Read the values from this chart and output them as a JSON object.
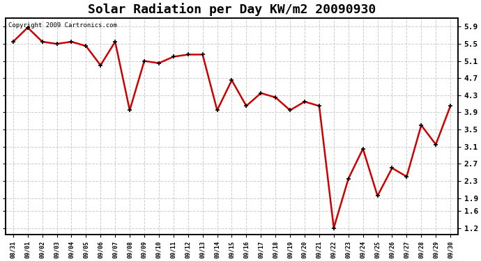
{
  "title": "Solar Radiation per Day KW/m2 20090930",
  "copyright_text": "Copyright 2009 Cartronics.com",
  "x_labels": [
    "08/31",
    "09/01",
    "09/02",
    "09/03",
    "09/04",
    "09/05",
    "09/06",
    "09/07",
    "09/08",
    "09/09",
    "09/10",
    "09/11",
    "09/12",
    "09/13",
    "09/14",
    "09/15",
    "09/16",
    "09/17",
    "09/18",
    "09/19",
    "09/20",
    "09/21",
    "09/22",
    "09/23",
    "09/24",
    "09/25",
    "09/26",
    "09/27",
    "09/28",
    "09/29",
    "09/30"
  ],
  "y_values": [
    5.55,
    5.88,
    5.55,
    5.5,
    5.55,
    5.45,
    5.0,
    5.55,
    3.95,
    5.1,
    5.05,
    5.2,
    5.25,
    5.25,
    3.95,
    4.65,
    4.05,
    4.35,
    4.25,
    3.95,
    4.15,
    4.05,
    1.2,
    2.35,
    3.05,
    1.95,
    2.6,
    2.4,
    3.6,
    3.15,
    4.05
  ],
  "line_color": "#cc0000",
  "marker_color": "#000000",
  "marker": "+",
  "marker_size": 5,
  "line_width": 1.8,
  "background_color": "#ffffff",
  "plot_bg_color": "#ffffff",
  "grid_color": "#cccccc",
  "title_fontsize": 13,
  "yticks": [
    1.2,
    1.6,
    1.9,
    2.3,
    2.7,
    3.1,
    3.5,
    3.9,
    4.3,
    4.7,
    5.1,
    5.5,
    5.9
  ],
  "ylim": [
    1.05,
    6.1
  ],
  "border_color": "#000000"
}
